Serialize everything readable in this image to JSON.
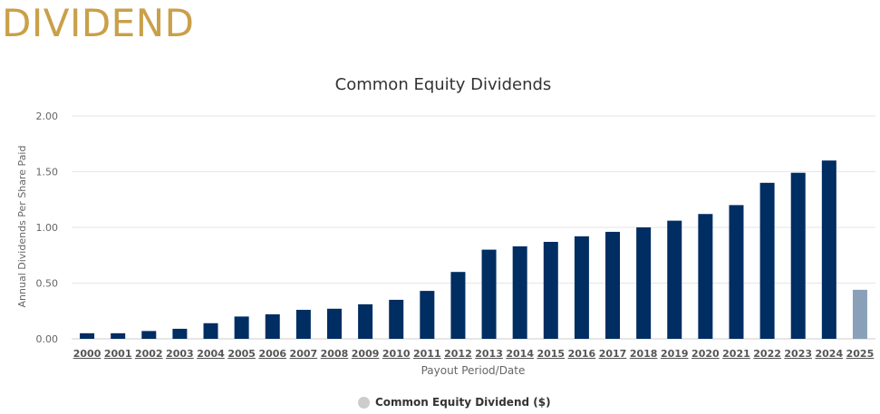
{
  "page": {
    "heading": "DIVIDEND"
  },
  "colors": {
    "heading": "#c9a04a",
    "bar": "#002d62",
    "bar_estimated": "#8aa0b8",
    "legend_marker": "#cccccc",
    "grid": "#e6e6e6"
  },
  "legend": {
    "label": "Common Equity Dividend ($)"
  },
  "chart_data": {
    "type": "bar",
    "title": "Common Equity Dividends",
    "xlabel": "Payout Period/Date",
    "ylabel": "Annual Dividends Per Share Paid",
    "ylim": [
      0,
      2
    ],
    "yticks": [
      "0.00",
      "0.50",
      "1.00",
      "1.50",
      "2.00"
    ],
    "grid": true,
    "legend_position": "bottom",
    "categories": [
      "2000",
      "2001",
      "2002",
      "2003",
      "2004",
      "2005",
      "2006",
      "2007",
      "2008",
      "2009",
      "2010",
      "2011",
      "2012",
      "2013",
      "2014",
      "2015",
      "2016",
      "2017",
      "2018",
      "2019",
      "2020",
      "2021",
      "2022",
      "2023",
      "2024",
      "2025"
    ],
    "series": [
      {
        "name": "Common Equity Dividend ($)",
        "values": [
          0.05,
          0.05,
          0.07,
          0.09,
          0.14,
          0.2,
          0.22,
          0.26,
          0.27,
          0.31,
          0.35,
          0.43,
          0.6,
          0.8,
          0.83,
          0.87,
          0.92,
          0.96,
          1.0,
          1.06,
          1.12,
          1.2,
          1.4,
          1.49,
          1.6,
          0.44
        ],
        "estimated": [
          false,
          false,
          false,
          false,
          false,
          false,
          false,
          false,
          false,
          false,
          false,
          false,
          false,
          false,
          false,
          false,
          false,
          false,
          false,
          false,
          false,
          false,
          false,
          false,
          false,
          true
        ]
      }
    ]
  }
}
